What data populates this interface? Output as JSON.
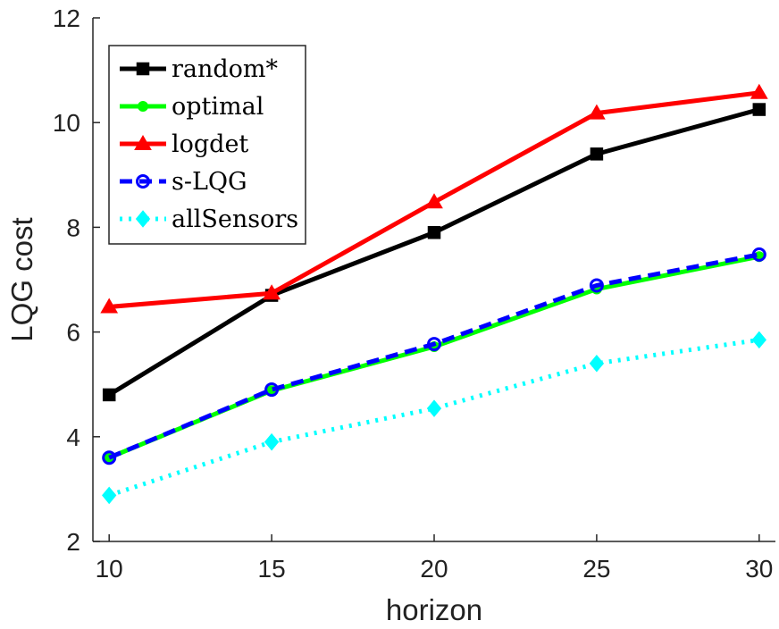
{
  "chart_data": {
    "type": "line",
    "title": "",
    "xlabel": "horizon",
    "ylabel": "LQG cost",
    "x": [
      10,
      15,
      20,
      25,
      30
    ],
    "xlim": [
      9.5,
      30.5
    ],
    "ylim": [
      2,
      12
    ],
    "xticks": [
      10,
      15,
      20,
      25,
      30
    ],
    "yticks": [
      2,
      4,
      6,
      8,
      10,
      12
    ],
    "grid": false,
    "legend_position": "top-left",
    "series": [
      {
        "name": "random*",
        "values": [
          4.8,
          6.7,
          7.9,
          9.4,
          10.25
        ],
        "color": "#000000",
        "dash": "solid",
        "marker": "square"
      },
      {
        "name": "optimal",
        "values": [
          3.6,
          4.88,
          5.72,
          6.82,
          7.44
        ],
        "color": "#00ff00",
        "dash": "solid",
        "marker": "dot"
      },
      {
        "name": "logdet",
        "values": [
          6.48,
          6.74,
          8.48,
          10.18,
          10.57
        ],
        "color": "#ff0000",
        "dash": "solid",
        "marker": "triangle"
      },
      {
        "name": "s-LQG",
        "values": [
          3.6,
          4.9,
          5.77,
          6.89,
          7.48
        ],
        "color": "#0000ff",
        "dash": "dashed",
        "marker": "circle"
      },
      {
        "name": "allSensors",
        "values": [
          2.88,
          3.9,
          4.54,
          5.4,
          5.85
        ],
        "color": "#00ffff",
        "dash": "dotted",
        "marker": "diamond"
      }
    ]
  }
}
